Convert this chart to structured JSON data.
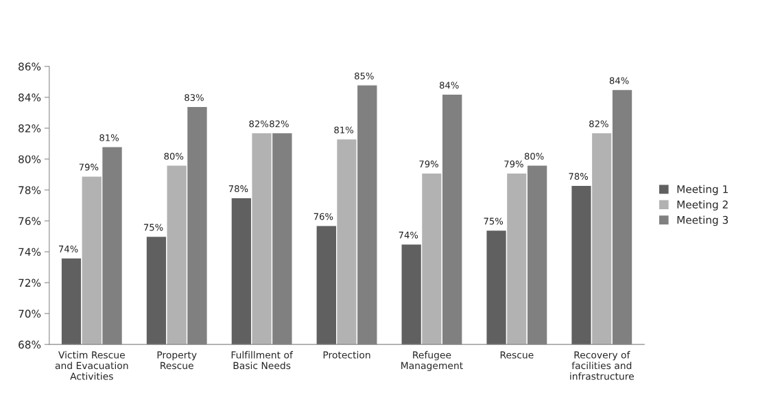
{
  "chart_data": {
    "type": "bar",
    "categories": [
      "Victim Rescue\nand Evacuation\nActivities",
      "Property\nRescue",
      "Fulfillment of\nBasic Needs",
      "Protection",
      "Refugee\nManagement",
      "Rescue",
      "Recovery of\nfacilities and\ninfrastructure"
    ],
    "series": [
      {
        "name": "Meeting 1",
        "color": "#606060",
        "values": [
          73.6,
          75.0,
          77.5,
          75.7,
          74.5,
          75.4,
          78.3
        ],
        "value_labels": [
          "74%",
          "75%",
          "78%",
          "76%",
          "74%",
          "75%",
          "78%"
        ]
      },
      {
        "name": "Meeting 2",
        "color": "#b2b2b2",
        "values": [
          78.9,
          79.6,
          81.7,
          81.3,
          79.1,
          79.1,
          81.7
        ],
        "value_labels": [
          "79%",
          "80%",
          "82%",
          "81%",
          "79%",
          "79%",
          "82%"
        ]
      },
      {
        "name": "Meeting 3",
        "color": "#808080",
        "values": [
          80.8,
          83.4,
          81.7,
          84.8,
          84.2,
          79.6,
          84.5
        ],
        "value_labels": [
          "81%",
          "83%",
          "82%",
          "85%",
          "84%",
          "80%",
          "84%"
        ]
      }
    ],
    "ylim": [
      68,
      86
    ],
    "yticks": [
      {
        "value": 68,
        "label": "68%"
      },
      {
        "value": 70,
        "label": "70%"
      },
      {
        "value": 72,
        "label": "72%"
      },
      {
        "value": 74,
        "label": "74%"
      },
      {
        "value": 76,
        "label": "76%"
      },
      {
        "value": 78,
        "label": "78%"
      },
      {
        "value": 80,
        "label": "80%"
      },
      {
        "value": 82,
        "label": "82%"
      },
      {
        "value": 84,
        "label": "84%"
      },
      {
        "value": 86,
        "label": "86%"
      }
    ],
    "grid": false,
    "legend": "right"
  }
}
